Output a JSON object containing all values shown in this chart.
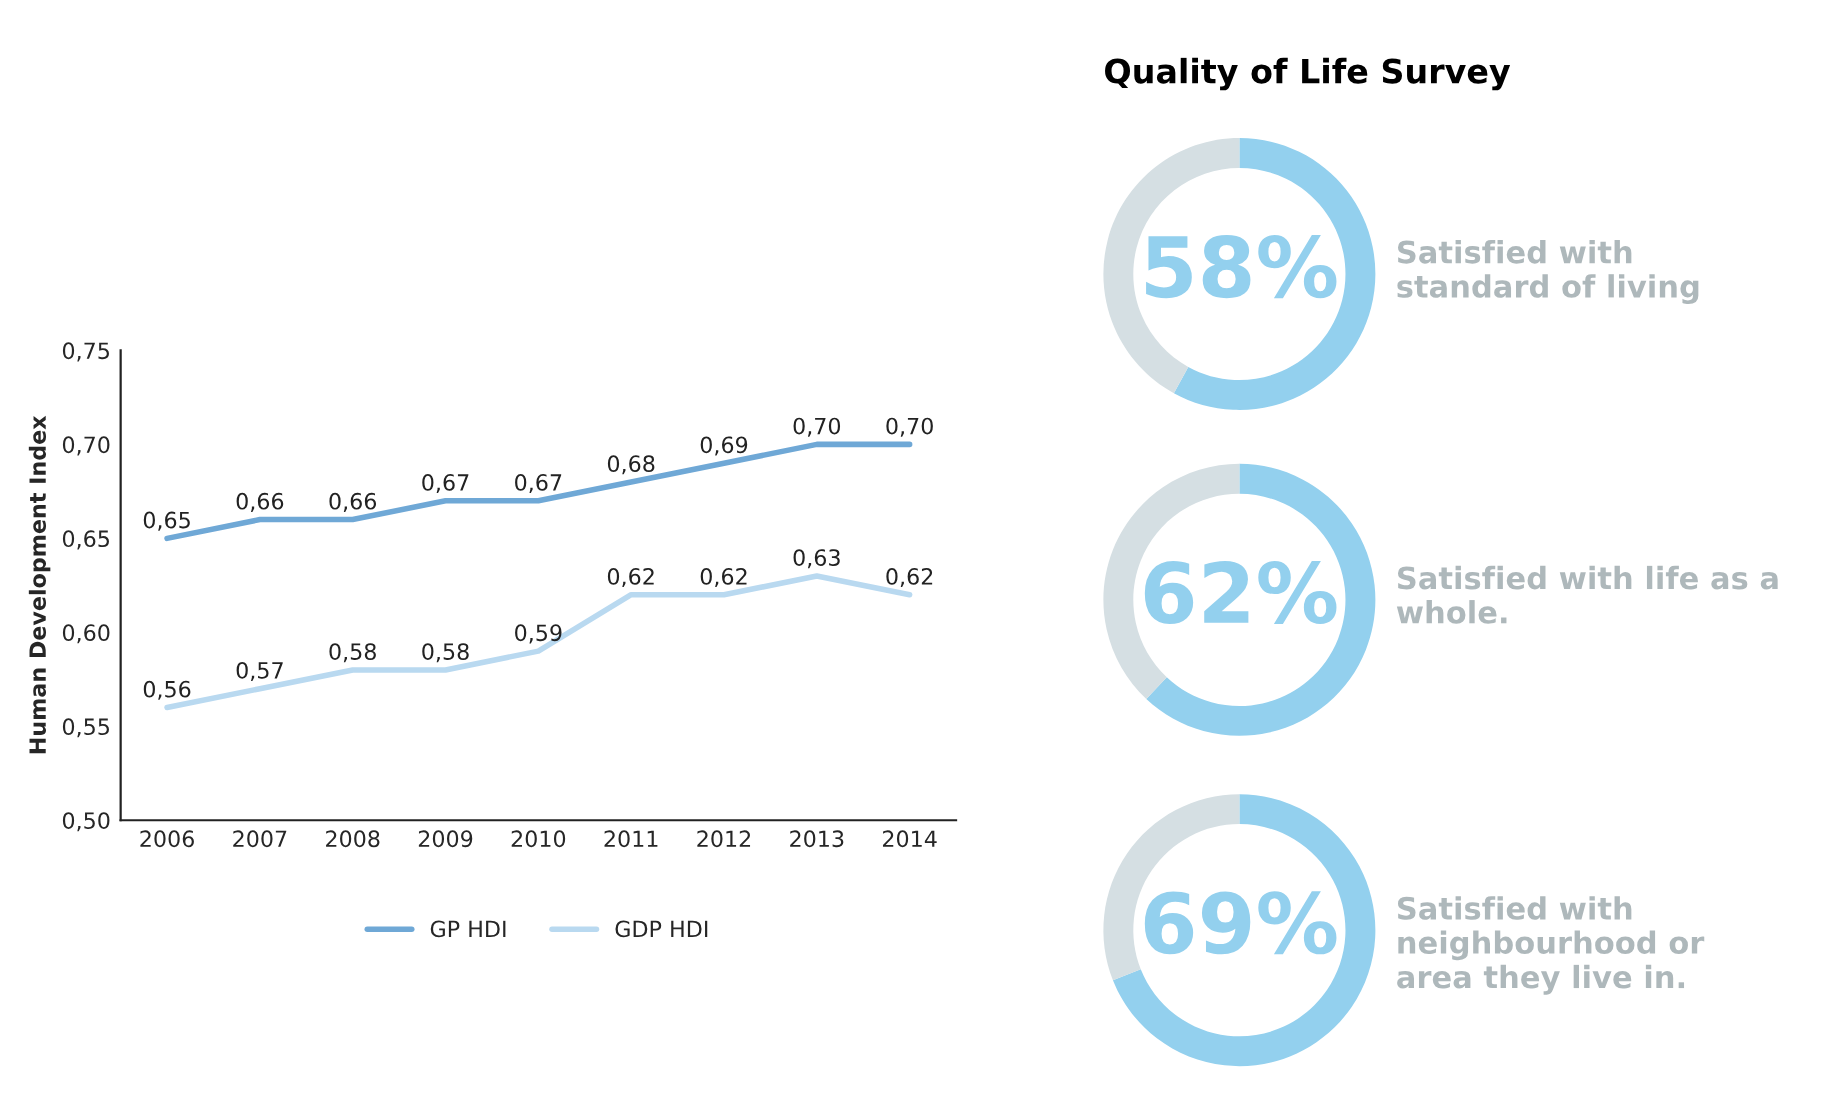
{
  "chart_data": [
    {
      "type": "line",
      "ylabel": "Human Development Index",
      "categories": [
        "2006",
        "2007",
        "2008",
        "2009",
        "2010",
        "2011",
        "2012",
        "2013",
        "2014"
      ],
      "series": [
        {
          "name": "GP HDI",
          "color": "#6fa8d6",
          "values": [
            0.65,
            0.66,
            0.66,
            0.67,
            0.67,
            0.68,
            0.69,
            0.7,
            0.7
          ],
          "value_labels": [
            "0,65",
            "0,66",
            "0,66",
            "0,67",
            "0,67",
            "0,68",
            "0,69",
            "0,70",
            "0,70"
          ]
        },
        {
          "name": "GDP HDI",
          "color": "#b9d9f0",
          "values": [
            0.56,
            0.57,
            0.58,
            0.58,
            0.59,
            0.62,
            0.62,
            0.63,
            0.62
          ],
          "value_labels": [
            "0,56",
            "0,57",
            "0,58",
            "0,58",
            "0,59",
            "0,62",
            "0,62",
            "0,63",
            "0,62"
          ]
        }
      ],
      "ylim": [
        0.5,
        0.75
      ],
      "yticks": [
        {
          "value": 0.5,
          "label": "0,50"
        },
        {
          "value": 0.55,
          "label": "0,55"
        },
        {
          "value": 0.6,
          "label": "0,60"
        },
        {
          "value": 0.65,
          "label": "0,65"
        },
        {
          "value": 0.7,
          "label": "0,70"
        },
        {
          "value": 0.75,
          "label": "0,75"
        }
      ],
      "grid": false,
      "legend": "bottom",
      "marker": "none",
      "line_style": "solid"
    },
    {
      "type": "donut",
      "title": "Quality of Life Survey",
      "categories": [
        "Satisfied with\nstandard of living",
        null
      ],
      "values": [
        58,
        42
      ],
      "colors": [
        "#93d0ee",
        "#d5dfe3"
      ],
      "value_labels": [
        "58%",
        null
      ]
    },
    {
      "type": "donut",
      "categories": [
        "Satisfied with life as a\nwhole.",
        null
      ],
      "values": [
        62,
        38
      ],
      "colors": [
        "#93d0ee",
        "#d5dfe3"
      ],
      "value_labels": [
        "62%",
        null
      ]
    },
    {
      "type": "donut",
      "categories": [
        "Satisfied with\nneighbourhood or\narea they live in.",
        null
      ],
      "values": [
        69,
        31
      ],
      "colors": [
        "#93d0ee",
        "#d5dfe3"
      ],
      "value_labels": [
        "69%",
        null
      ]
    }
  ]
}
